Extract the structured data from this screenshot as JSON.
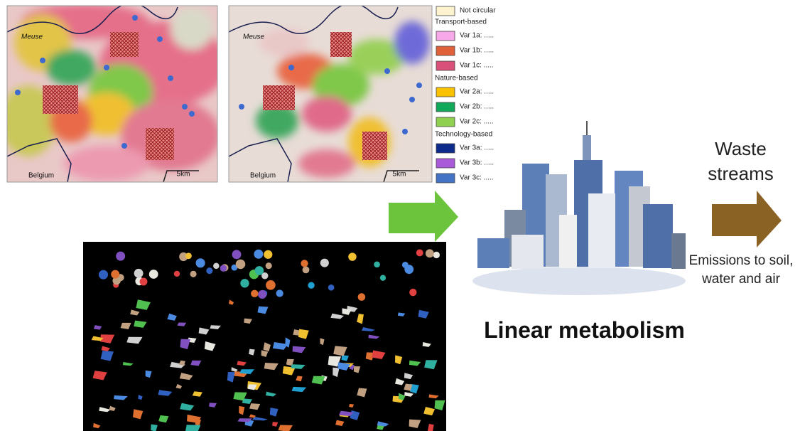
{
  "maps": [
    {
      "river": "Meuse",
      "country": "Belgium",
      "scale": "5km"
    },
    {
      "river": "Meuse",
      "country": "Belgium",
      "scale": "5km"
    }
  ],
  "legend": {
    "base": {
      "label": "Not circular",
      "color": "#fdf3cf"
    },
    "groups": [
      {
        "heading": "Transport-based",
        "items": [
          {
            "label": "Var 1a: .....",
            "color": "#f7a8e8"
          },
          {
            "label": "Var 1b: .....",
            "color": "#e0603a"
          },
          {
            "label": "Var 1c: .....",
            "color": "#d9507a"
          }
        ]
      },
      {
        "heading": "Nature-based",
        "items": [
          {
            "label": "Var 2a: .....",
            "color": "#f9c200"
          },
          {
            "label": "Var 2b: .....",
            "color": "#12a85a"
          },
          {
            "label": "Var 2c: .....",
            "color": "#8fd14f"
          }
        ]
      },
      {
        "heading": "Technology-based",
        "items": [
          {
            "label": "Var 3a: .....",
            "color": "#0c2b8c"
          },
          {
            "label": "Var 3b: .....",
            "color": "#a95ad8"
          },
          {
            "label": "Var 3c: .....",
            "color": "#4472c4"
          }
        ]
      }
    ]
  },
  "waste_label": "Waste streams",
  "emissions_label": "Emissions to soil, water and air",
  "title": "Linear metabolism"
}
